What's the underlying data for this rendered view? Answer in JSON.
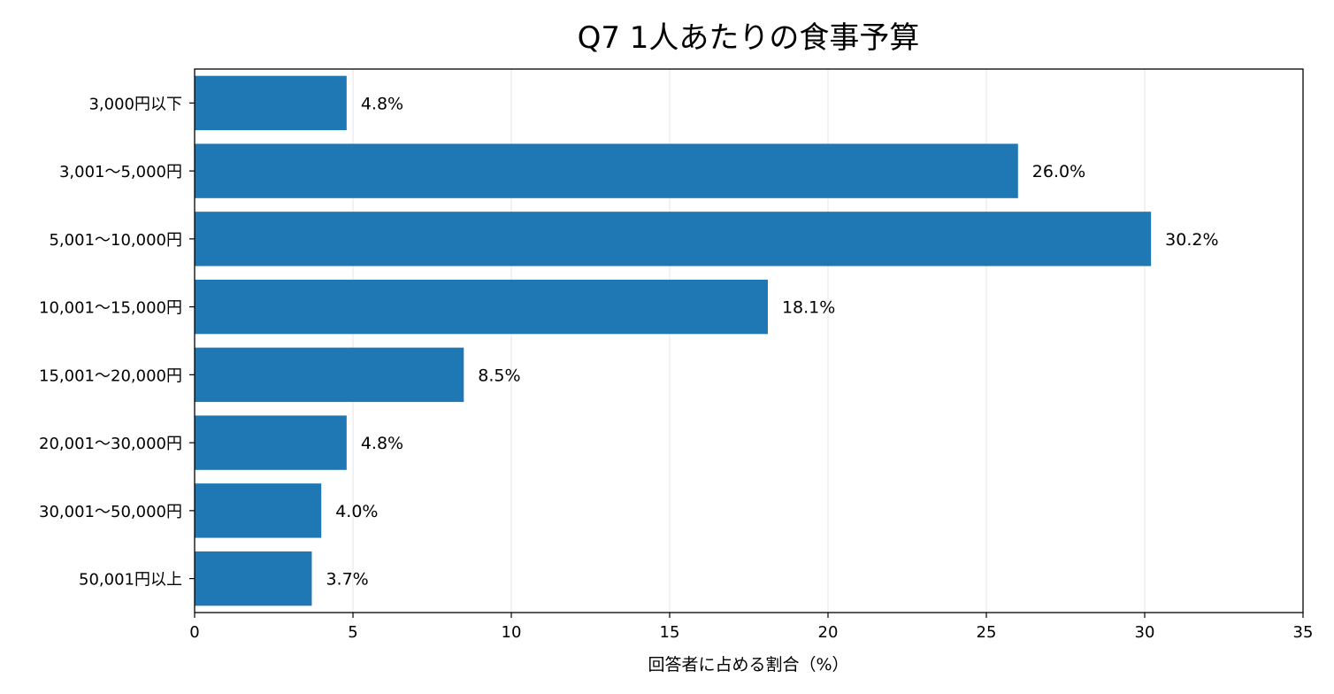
{
  "chart_data": {
    "type": "bar",
    "orientation": "horizontal",
    "title": "Q7 1人あたりの食事予算",
    "xlabel": "回答者に占める割合（%）",
    "ylabel": "",
    "categories": [
      "3,000円以下",
      "3,001〜5,000円",
      "5,001〜10,000円",
      "10,001〜15,000円",
      "15,001〜20,000円",
      "20,001〜30,000円",
      "30,001〜50,000円",
      "50,001円以上"
    ],
    "values": [
      4.8,
      26.0,
      30.2,
      18.1,
      8.5,
      4.8,
      4.0,
      3.7
    ],
    "data_labels": [
      "4.8%",
      "26.0%",
      "30.2%",
      "18.1%",
      "8.5%",
      "4.8%",
      "4.0%",
      "3.7%"
    ],
    "xlim": [
      0,
      35
    ],
    "xticks": [
      0,
      5,
      10,
      15,
      20,
      25,
      30,
      35
    ],
    "xtick_labels": [
      "0",
      "5",
      "10",
      "15",
      "20",
      "25",
      "30",
      "35"
    ],
    "grid": "vertical",
    "bar_color": "#1f77b4",
    "grid_color": "#e6e6e6"
  }
}
